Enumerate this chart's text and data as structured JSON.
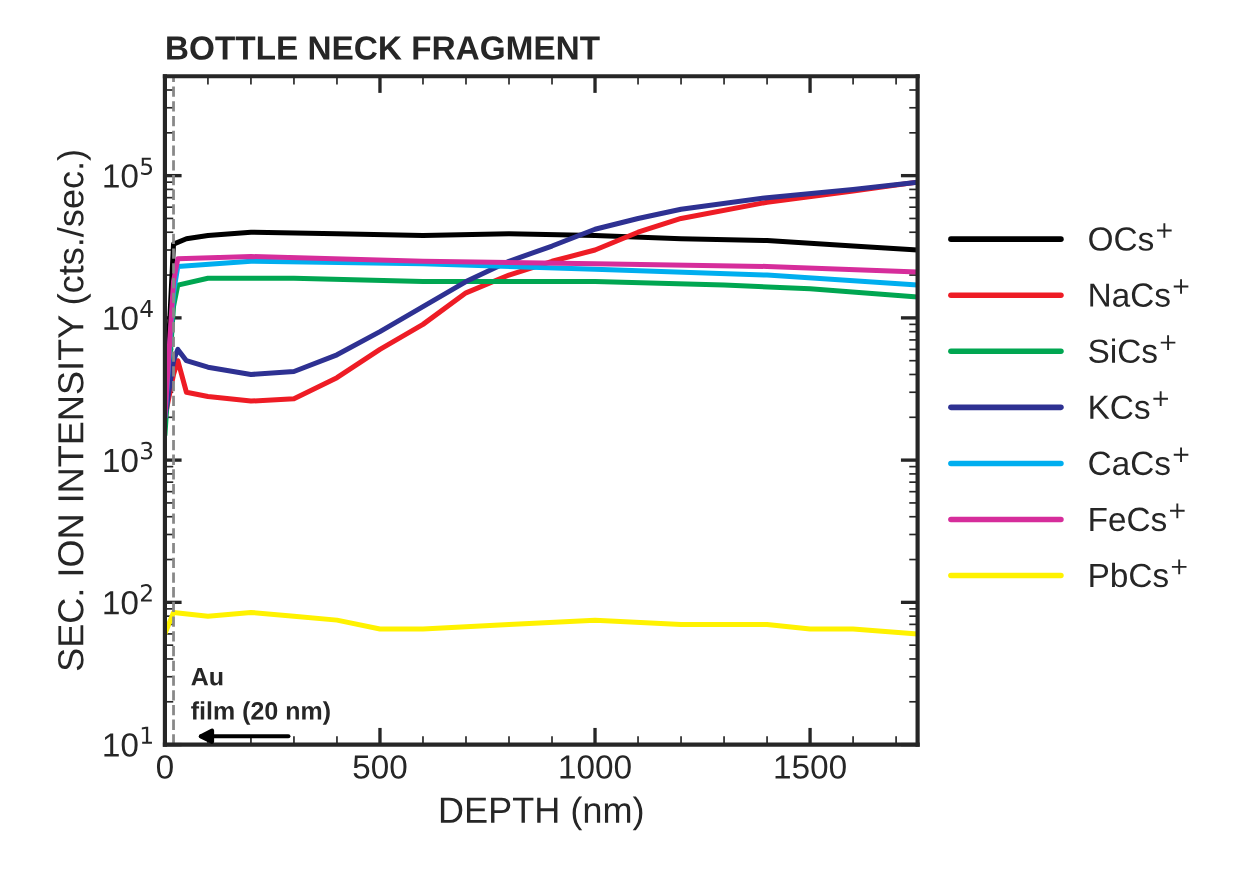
{
  "chart_data": {
    "type": "line",
    "title": "BOTTLE NECK FRAGMENT",
    "xlabel": "DEPTH (nm)",
    "ylabel": "SEC. ION INTENSITY (cts./sec.)",
    "log": "y",
    "xlim": [
      0,
      1750
    ],
    "ylim": [
      10,
      500000
    ],
    "xticks": [
      0,
      500,
      1000,
      1500
    ],
    "yticks": [
      {
        "value": 10,
        "label": "10$^{1}$"
      },
      {
        "value": 100,
        "label": "10$^{2}$"
      },
      {
        "value": 1000,
        "label": "10$^{3}$"
      },
      {
        "value": 10000,
        "label": "10$^{4}$"
      },
      {
        "value": 100000,
        "label": "10$^{5}$"
      }
    ],
    "legend": "right",
    "grid": false,
    "line_style": "solid",
    "ref_lines": [
      {
        "axis": "x",
        "value": 20,
        "label": null,
        "color": "#888888",
        "line_style": "dashed"
      }
    ],
    "annotations": [
      {
        "text": "Au\nfilm (20 nm)",
        "x": 20,
        "y": 22
      }
    ],
    "series": [
      {
        "name": "OCs$^{+}$",
        "color": "#000000",
        "x": [
          0,
          20,
          50,
          100,
          200,
          400,
          600,
          800,
          1000,
          1200,
          1400,
          1600,
          1750
        ],
        "values": [
          2000,
          33000,
          36000,
          38000,
          40000,
          39000,
          38000,
          39000,
          38000,
          36000,
          35000,
          32000,
          30000
        ]
      },
      {
        "name": "NaCs$^{+}$",
        "color": "#ee1c25",
        "x": [
          0,
          20,
          30,
          50,
          100,
          200,
          300,
          400,
          500,
          600,
          700,
          800,
          900,
          1000,
          1100,
          1200,
          1400,
          1600,
          1750
        ],
        "values": [
          2000,
          4000,
          5000,
          3000,
          2800,
          2600,
          2700,
          3800,
          6000,
          9000,
          15000,
          20000,
          25000,
          30000,
          40000,
          50000,
          65000,
          78000,
          90000
        ]
      },
      {
        "name": "SiCs$^{+}$",
        "color": "#00a651",
        "x": [
          0,
          20,
          30,
          100,
          300,
          600,
          1000,
          1300,
          1500,
          1750
        ],
        "values": [
          1500,
          12000,
          17000,
          19000,
          19000,
          18000,
          18000,
          17000,
          16000,
          14000
        ]
      },
      {
        "name": "KCs$^{+}$",
        "color": "#2e3192",
        "x": [
          0,
          20,
          30,
          50,
          100,
          200,
          300,
          400,
          500,
          600,
          700,
          800,
          900,
          1000,
          1100,
          1200,
          1400,
          1600,
          1750
        ],
        "values": [
          2000,
          5000,
          6000,
          5000,
          4500,
          4000,
          4200,
          5500,
          8000,
          12000,
          18000,
          25000,
          32000,
          42000,
          50000,
          58000,
          70000,
          80000,
          90000
        ]
      },
      {
        "name": "CaCs$^{+}$",
        "color": "#00aeef",
        "x": [
          0,
          20,
          30,
          200,
          600,
          1000,
          1400,
          1750
        ],
        "values": [
          2000,
          15000,
          23000,
          25000,
          24000,
          22000,
          20000,
          17000
        ]
      },
      {
        "name": "FeCs$^{+}$",
        "color": "#d62d9b",
        "x": [
          0,
          20,
          30,
          200,
          600,
          1000,
          1400,
          1750
        ],
        "values": [
          2000,
          18000,
          26000,
          27000,
          25000,
          24000,
          23000,
          21000
        ]
      },
      {
        "name": "PbCs$^{+}$",
        "color": "#fff200",
        "x": [
          0,
          20,
          100,
          200,
          300,
          400,
          500,
          600,
          800,
          1000,
          1200,
          1400,
          1500,
          1600,
          1750
        ],
        "values": [
          60,
          85,
          80,
          85,
          80,
          75,
          65,
          65,
          70,
          75,
          70,
          70,
          65,
          65,
          60
        ]
      }
    ]
  }
}
